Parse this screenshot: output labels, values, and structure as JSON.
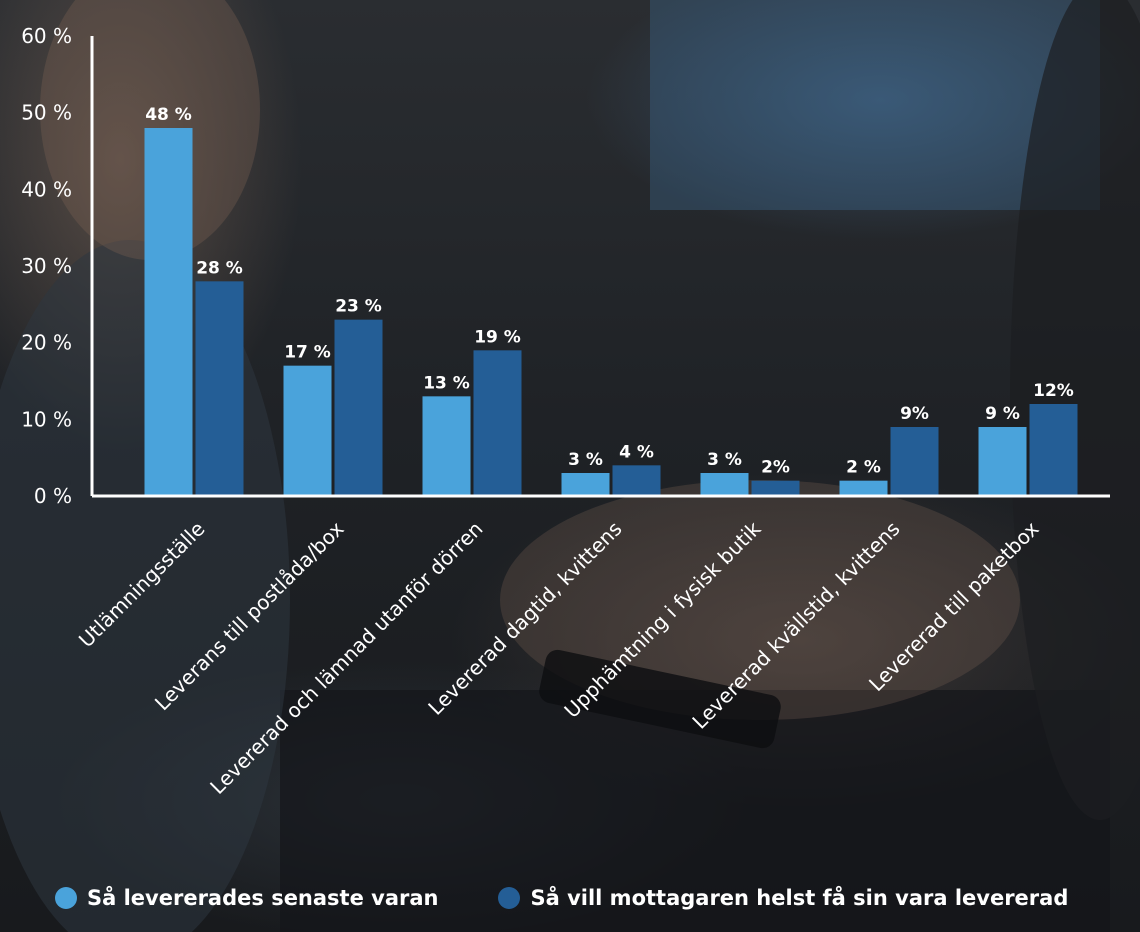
{
  "chart_data": {
    "type": "bar",
    "categories": [
      "Utlämningsställe",
      "Leverans till postlåda/box",
      "Levererad och lämnad utanför dörren",
      "Levererad dagtid, kvittens",
      "Upphämtning i fysisk butik",
      "Levererad kvällstid, kvittens",
      "Levererad till paketbox"
    ],
    "series": [
      {
        "name": "Så levererades senaste varan",
        "color": "#4aa3db",
        "values": [
          48,
          17,
          13,
          3,
          3,
          2,
          9
        ],
        "labels": [
          "48 %",
          "17 %",
          "13 %",
          "3 %",
          "3 %",
          "2 %",
          "9 %"
        ]
      },
      {
        "name": "Så vill mottagaren helst få sin vara levererad",
        "color": "#245e96",
        "values": [
          28,
          23,
          19,
          4,
          2,
          9,
          12
        ],
        "labels": [
          "28 %",
          "23 %",
          "19 %",
          "4 %",
          "2%",
          "9%",
          "12%"
        ]
      }
    ],
    "y_ticks": [
      0,
      10,
      20,
      30,
      40,
      50,
      60
    ],
    "y_tick_labels": [
      "0 %",
      "10 %",
      "20 %",
      "30 %",
      "40 %",
      "50 %",
      "60 %"
    ],
    "ylim": [
      0,
      60
    ],
    "grid": false,
    "legend_position": "bottom-left"
  }
}
